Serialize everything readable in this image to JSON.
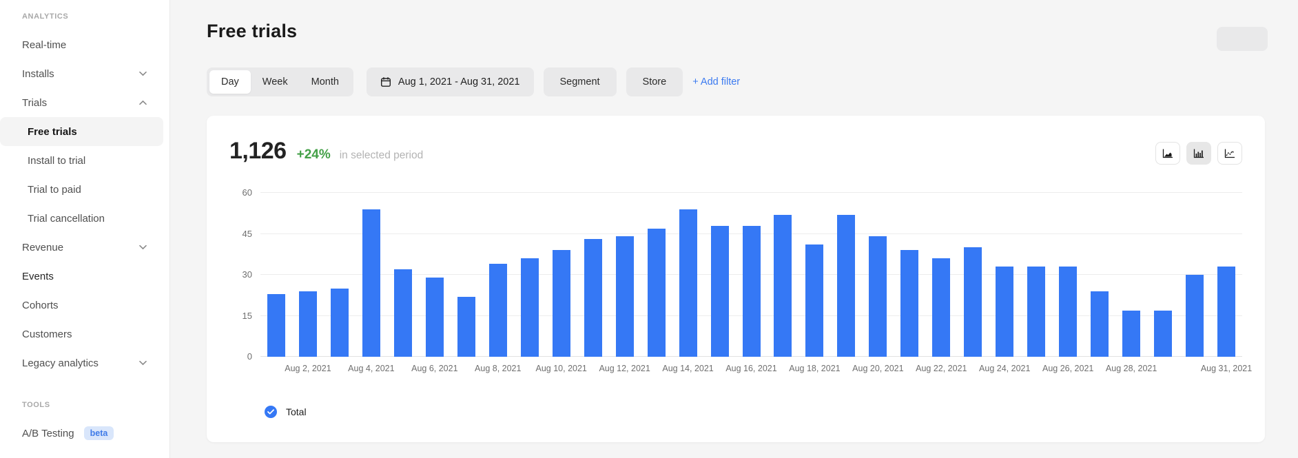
{
  "colors": {
    "accent_blue": "#3578F5",
    "link_blue": "#3B7AF0",
    "positive_green": "#43A047",
    "badge_bg": "#D9E6FB",
    "badge_text": "#3F7BE8"
  },
  "sidebar": {
    "analytics_section_label": "ANALYTICS",
    "tools_section_label": "TOOLS",
    "analytics_items": [
      {
        "label": "Real-time"
      },
      {
        "label": "Installs",
        "chevron": "down"
      },
      {
        "label": "Trials",
        "chevron": "up"
      },
      {
        "label": "Free trials",
        "sub": true,
        "active": true
      },
      {
        "label": "Install to trial",
        "sub": true
      },
      {
        "label": "Trial to paid",
        "sub": true
      },
      {
        "label": "Trial cancellation",
        "sub": true
      },
      {
        "label": "Revenue",
        "chevron": "down"
      },
      {
        "label": "Events",
        "emphasis": true
      },
      {
        "label": "Cohorts"
      },
      {
        "label": "Customers"
      },
      {
        "label": "Legacy analytics",
        "chevron": "down"
      }
    ],
    "tools_items": [
      {
        "label": "A/B Testing",
        "badge": "beta"
      }
    ]
  },
  "header": {
    "title": "Free trials"
  },
  "filters": {
    "period_tabs": [
      "Day",
      "Week",
      "Month"
    ],
    "period_selected": "Day",
    "date_range": "Aug 1, 2021 - Aug 31, 2021",
    "segment_label": "Segment",
    "store_label": "Store",
    "add_filter_label": "+ Add filter"
  },
  "stats": {
    "total": "1,126",
    "change": "+24%",
    "caption": "in selected period"
  },
  "chart_toolbar": {
    "icons": [
      "area-chart",
      "bar-chart",
      "line-chart"
    ],
    "selected": "bar-chart"
  },
  "chart_data": {
    "type": "bar",
    "title": "Free trials",
    "x": [
      "Aug 1, 2021",
      "Aug 2, 2021",
      "Aug 3, 2021",
      "Aug 4, 2021",
      "Aug 5, 2021",
      "Aug 6, 2021",
      "Aug 7, 2021",
      "Aug 8, 2021",
      "Aug 9, 2021",
      "Aug 10, 2021",
      "Aug 11, 2021",
      "Aug 12, 2021",
      "Aug 13, 2021",
      "Aug 14, 2021",
      "Aug 15, 2021",
      "Aug 16, 2021",
      "Aug 17, 2021",
      "Aug 18, 2021",
      "Aug 19, 2021",
      "Aug 20, 2021",
      "Aug 21, 2021",
      "Aug 22, 2021",
      "Aug 23, 2021",
      "Aug 24, 2021",
      "Aug 25, 2021",
      "Aug 26, 2021",
      "Aug 27, 2021",
      "Aug 28, 2021",
      "Aug 29, 2021",
      "Aug 30, 2021",
      "Aug 31, 2021"
    ],
    "series": [
      {
        "name": "Total",
        "values": [
          23,
          24,
          25,
          54,
          32,
          29,
          22,
          34,
          36,
          39,
          43,
          44,
          47,
          54,
          48,
          48,
          52,
          41,
          52,
          44,
          39,
          36,
          40,
          33,
          33,
          33,
          24,
          17,
          17,
          30,
          33
        ]
      }
    ],
    "y_ticks": [
      0,
      15,
      30,
      45,
      60
    ],
    "ylim": [
      0,
      60
    ],
    "x_tick_labels": [
      "Aug 2, 2021",
      "Aug 4, 2021",
      "Aug 6, 2021",
      "Aug 8, 2021",
      "Aug 10, 2021",
      "Aug 12, 2021",
      "Aug 14, 2021",
      "Aug 16, 2021",
      "Aug 18, 2021",
      "Aug 20, 2021",
      "Aug 22, 2021",
      "Aug 24, 2021",
      "Aug 26, 2021",
      "Aug 28, 2021",
      "Aug 31, 2021"
    ],
    "x_tick_bar_indices": [
      1,
      3,
      5,
      7,
      9,
      11,
      13,
      15,
      17,
      19,
      21,
      23,
      25,
      27,
      30
    ],
    "grid": true,
    "bar_color": "#3578F5",
    "legend_position": "bottom",
    "legend": [
      {
        "label": "Total",
        "color": "#3578F5",
        "checked": true
      }
    ]
  }
}
